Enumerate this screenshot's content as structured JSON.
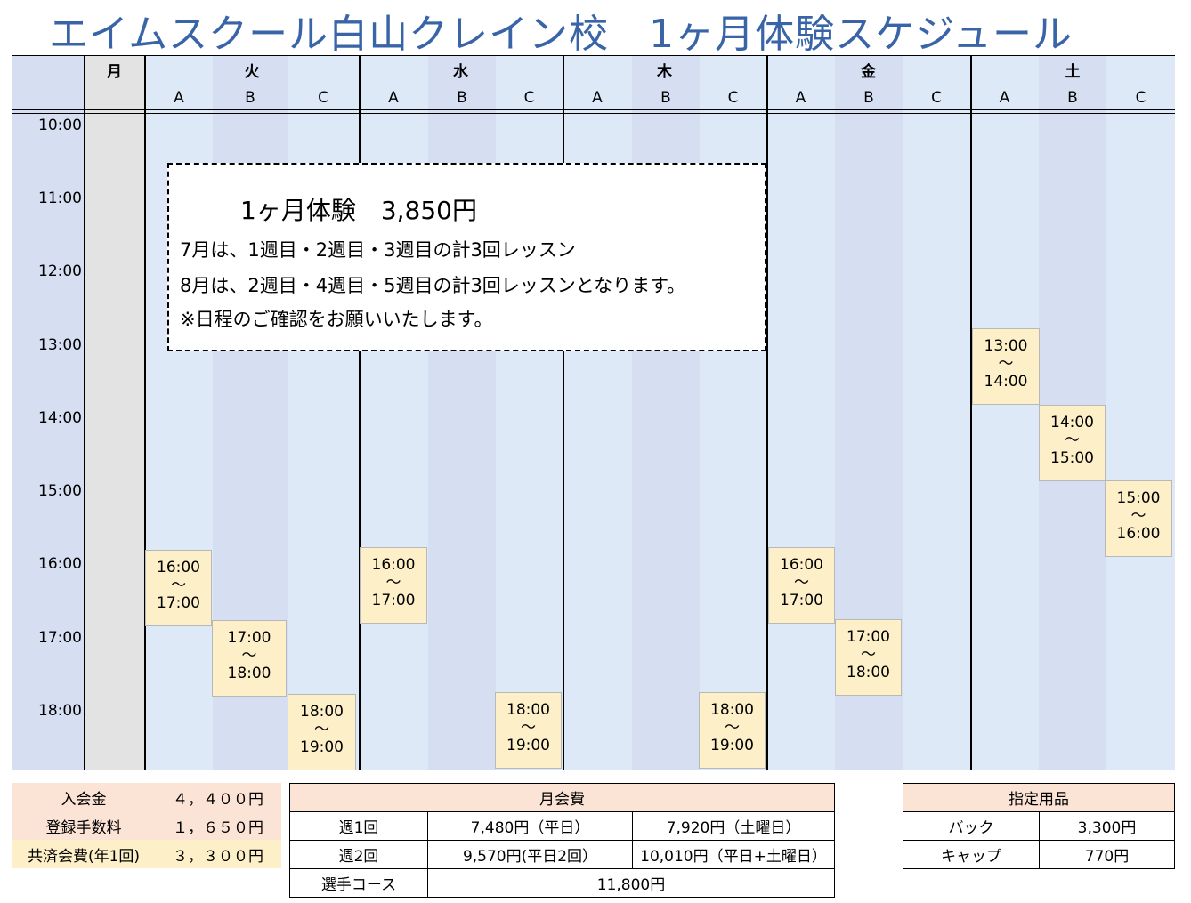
{
  "title": "エイムスクール白山クレイン校　1ヶ月体験スケジュール",
  "days": [
    {
      "label": "月",
      "subs": []
    },
    {
      "label": "火",
      "subs": [
        "A",
        "B",
        "C"
      ]
    },
    {
      "label": "水",
      "subs": [
        "A",
        "B",
        "C"
      ]
    },
    {
      "label": "木",
      "subs": [
        "A",
        "B",
        "C"
      ]
    },
    {
      "label": "金",
      "subs": [
        "A",
        "B",
        "C"
      ]
    },
    {
      "label": "土",
      "subs": [
        "A",
        "B",
        "C"
      ]
    }
  ],
  "times": [
    "10:00",
    "11:00",
    "12:00",
    "13:00",
    "14:00",
    "15:00",
    "16:00",
    "17:00",
    "18:00"
  ],
  "tilde": "〜",
  "slots": [
    {
      "start": "16:00",
      "end": "17:00"
    },
    {
      "start": "17:00",
      "end": "18:00"
    },
    {
      "start": "18:00",
      "end": "19:00"
    },
    {
      "start": "16:00",
      "end": "17:00"
    },
    {
      "start": "18:00",
      "end": "19:00"
    },
    {
      "start": "18:00",
      "end": "19:00"
    },
    {
      "start": "16:00",
      "end": "17:00"
    },
    {
      "start": "17:00",
      "end": "18:00"
    },
    {
      "start": "13:00",
      "end": "14:00"
    },
    {
      "start": "14:00",
      "end": "15:00"
    },
    {
      "start": "15:00",
      "end": "16:00"
    }
  ],
  "notice": {
    "headline": "1ヶ月体験　3,850円",
    "line1": "7月は、1週目・2週目・3週目の計3回レッスン",
    "line2": "8月は、2週目・4週目・5週目の計3回レッスンとなります。",
    "line3": "※日程のご確認をお願いいたします。"
  },
  "fees": [
    {
      "label": "入会金",
      "value": "４，４００円"
    },
    {
      "label": "登録手数料",
      "value": "１，６５０円"
    },
    {
      "label": "共済会費(年1回)",
      "value": "３，３００円"
    }
  ],
  "monthly": {
    "header": "月会費",
    "rows": [
      [
        "週1回",
        "7,480円（平日）",
        "7,920円（土曜日）"
      ],
      [
        "週2回",
        "9,570円(平日2回）",
        "10,010円（平日+土曜日）"
      ],
      [
        "選手コース",
        "11,800円"
      ]
    ]
  },
  "items": {
    "header": "指定用品",
    "rows": [
      [
        "バック",
        "3,300円"
      ],
      [
        "キャップ",
        "770円"
      ]
    ]
  },
  "colors": {
    "title": "#3a64a8",
    "light": "#dde9f6",
    "mid": "#d6def2",
    "gray": "#e3e3e3",
    "slot": "#fdf0c8",
    "fee": "#fbe4d5"
  }
}
